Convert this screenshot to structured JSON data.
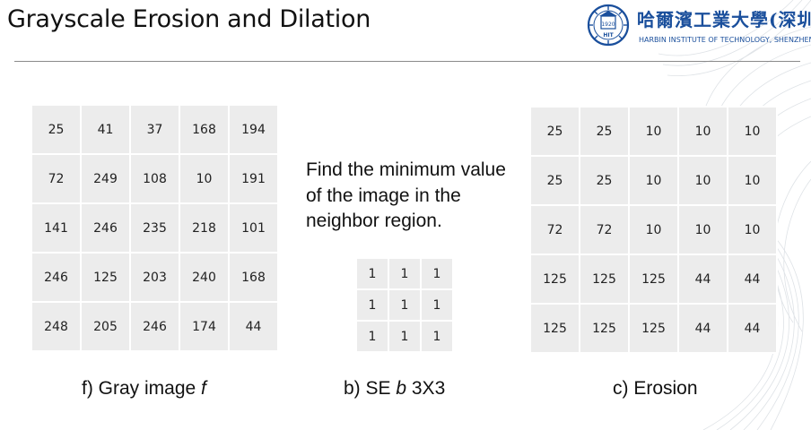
{
  "slide": {
    "title": "Grayscale Erosion and Dilation",
    "logo": {
      "chinese_name": "哈爾濱工業大學(深圳)",
      "english_name": "HARBIN INSTITUTE OF TECHNOLOGY, SHENZHEN",
      "emblem_text": "HIT",
      "emblem_year": "1920"
    },
    "instruction": "Find the minimum value of the image in the neighbor region.",
    "gray_image": {
      "caption_prefix": "f) Gray image ",
      "caption_var": "f",
      "rows": [
        [
          "25",
          "41",
          "37",
          "168",
          "194"
        ],
        [
          "72",
          "249",
          "108",
          "10",
          "191"
        ],
        [
          "141",
          "246",
          "235",
          "218",
          "101"
        ],
        [
          "246",
          "125",
          "203",
          "240",
          "168"
        ],
        [
          "248",
          "205",
          "246",
          "174",
          "44"
        ]
      ]
    },
    "structuring_element": {
      "caption_prefix": "b) SE ",
      "caption_var": "b",
      "caption_suffix": " 3X3",
      "rows": [
        [
          "1",
          "1",
          "1"
        ],
        [
          "1",
          "1",
          "1"
        ],
        [
          "1",
          "1",
          "1"
        ]
      ]
    },
    "erosion": {
      "caption": "c) Erosion",
      "rows": [
        [
          "25",
          "25",
          "10",
          "10",
          "10"
        ],
        [
          "25",
          "25",
          "10",
          "10",
          "10"
        ],
        [
          "72",
          "72",
          "10",
          "10",
          "10"
        ],
        [
          "125",
          "125",
          "125",
          "44",
          "44"
        ],
        [
          "125",
          "125",
          "125",
          "44",
          "44"
        ]
      ]
    }
  },
  "colors": {
    "cell_background": "#ececec",
    "logo_blue": "#1a4f9c",
    "rule": "#8a8a8a"
  }
}
